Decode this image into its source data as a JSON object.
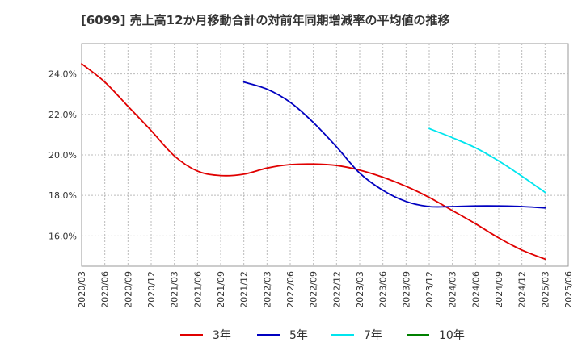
{
  "chart_data": {
    "type": "line",
    "title": "[6099]  売上高12か月移動合計の対前年同期増減率の平均値の推移",
    "xlabel": "",
    "ylabel": "",
    "x_ticks": [
      "2020/03",
      "2020/06",
      "2020/09",
      "2020/12",
      "2021/03",
      "2021/06",
      "2021/09",
      "2021/12",
      "2022/03",
      "2022/06",
      "2022/09",
      "2022/12",
      "2023/03",
      "2023/06",
      "2023/09",
      "2023/12",
      "2024/03",
      "2024/06",
      "2024/09",
      "2024/12",
      "2025/03",
      "2025/06"
    ],
    "y_ticks": [
      "16.0%",
      "18.0%",
      "20.0%",
      "22.0%",
      "24.0%"
    ],
    "y_tick_values": [
      16,
      18,
      20,
      22,
      24
    ],
    "ylim": [
      14.5,
      25.5
    ],
    "grid": true,
    "legend_position": "bottom",
    "series": [
      {
        "name": "3年",
        "color": "#e00000",
        "x": [
          "2020/03",
          "2020/06",
          "2020/09",
          "2020/12",
          "2021/03",
          "2021/06",
          "2021/09",
          "2021/12",
          "2022/03",
          "2022/06",
          "2022/09",
          "2022/12",
          "2023/03",
          "2023/06",
          "2023/09",
          "2023/12",
          "2024/03",
          "2024/06",
          "2024/09",
          "2024/12",
          "2025/03"
        ],
        "values": [
          24.5,
          23.6,
          22.4,
          21.2,
          19.95,
          19.2,
          18.98,
          19.05,
          19.35,
          19.52,
          19.55,
          19.48,
          19.25,
          18.9,
          18.45,
          17.9,
          17.25,
          16.6,
          15.9,
          15.3,
          14.85
        ]
      },
      {
        "name": "5年",
        "color": "#0000c0",
        "x": [
          "2021/12",
          "2022/03",
          "2022/06",
          "2022/09",
          "2022/12",
          "2023/03",
          "2023/06",
          "2023/09",
          "2023/12",
          "2024/03",
          "2024/06",
          "2024/09",
          "2024/12",
          "2025/03"
        ],
        "values": [
          23.6,
          23.25,
          22.6,
          21.6,
          20.4,
          19.1,
          18.25,
          17.7,
          17.45,
          17.45,
          17.48,
          17.48,
          17.45,
          17.38
        ]
      },
      {
        "name": "7年",
        "color": "#00e5ee",
        "x": [
          "2023/12",
          "2024/03",
          "2024/06",
          "2024/09",
          "2024/12",
          "2025/03"
        ],
        "values": [
          21.3,
          20.85,
          20.35,
          19.7,
          18.95,
          18.15
        ]
      },
      {
        "name": "10年",
        "color": "#008000",
        "x": [],
        "values": []
      }
    ]
  }
}
